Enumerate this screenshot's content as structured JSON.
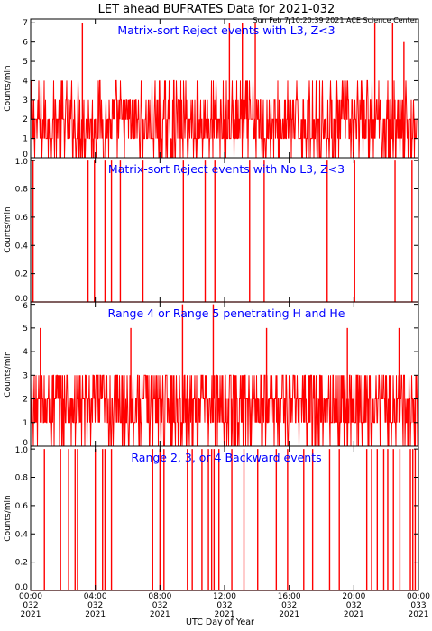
{
  "title": "LET ahead BUFRATES Data for 2021-032",
  "subtitle": "Sun Feb  7 10:20:39 2021 ACE Science Center",
  "xlabel": "UTC Day of Year",
  "colors": {
    "data": "#ff0000",
    "panel_title": "#0000ff",
    "axes": "#000000"
  },
  "chart_data": {
    "type": "bar",
    "x_ticks": [
      {
        "time": "00:00",
        "doy": "032",
        "year": "2021"
      },
      {
        "time": "04:00",
        "doy": "032",
        "year": "2021"
      },
      {
        "time": "08:00",
        "doy": "032",
        "year": "2021"
      },
      {
        "time": "12:00",
        "doy": "032",
        "year": "2021"
      },
      {
        "time": "16:00",
        "doy": "032",
        "year": "2021"
      },
      {
        "time": "20:00",
        "doy": "032",
        "year": "2021"
      },
      {
        "time": "00:00",
        "doy": "033",
        "year": "2021"
      }
    ],
    "x_range_hours": [
      0,
      24
    ],
    "panels": [
      {
        "title": "Matrix-sort Reject events with L3, Z<3",
        "ylabel": "Counts/min",
        "ylim": [
          0,
          7.2
        ],
        "yticks": [
          0,
          1,
          2,
          3,
          4,
          5,
          6,
          7
        ],
        "ytick_labels": [
          "0",
          "1",
          "2",
          "3",
          "4",
          "5",
          "6",
          "7"
        ],
        "kind": "dense",
        "typical_range": [
          0,
          4
        ],
        "peaks": [
          {
            "time_hours": 3.2,
            "value": 7
          },
          {
            "time_hours": 12.3,
            "value": 7
          },
          {
            "time_hours": 13.1,
            "value": 7
          },
          {
            "time_hours": 13.9,
            "value": 7
          },
          {
            "time_hours": 21.3,
            "value": 7
          },
          {
            "time_hours": 22.4,
            "value": 7
          },
          {
            "time_hours": 23.1,
            "value": 6
          }
        ]
      },
      {
        "title": "Matrix-sort Reject events with No L3, Z<3",
        "ylabel": "Counts/min",
        "ylim": [
          0,
          1.02
        ],
        "yticks": [
          0,
          0.2,
          0.4,
          0.6,
          0.8,
          1.0
        ],
        "ytick_labels": [
          "0.0",
          "0.2",
          "0.4",
          "0.6",
          "0.8",
          "1.0"
        ],
        "kind": "sparse",
        "event_value": 1,
        "event_times_hours": [
          0.15,
          3.55,
          3.95,
          4.6,
          5.0,
          5.55,
          6.95,
          9.45,
          10.8,
          11.4,
          13.55,
          14.45,
          18.35,
          20.05,
          22.55,
          23.6
        ]
      },
      {
        "title": "Range 4 or Range 5 penetrating H and He",
        "ylabel": "Counts/min",
        "ylim": [
          0,
          6.1
        ],
        "yticks": [
          0,
          1,
          2,
          3,
          4,
          5,
          6
        ],
        "ytick_labels": [
          "0",
          "1",
          "2",
          "3",
          "4",
          "5",
          "6"
        ],
        "kind": "dense",
        "typical_range": [
          0,
          3
        ],
        "peaks": [
          {
            "time_hours": 0.6,
            "value": 5
          },
          {
            "time_hours": 6.2,
            "value": 5
          },
          {
            "time_hours": 9.4,
            "value": 6
          },
          {
            "time_hours": 11.3,
            "value": 6
          },
          {
            "time_hours": 14.6,
            "value": 5
          },
          {
            "time_hours": 19.6,
            "value": 5
          },
          {
            "time_hours": 22.8,
            "value": 5
          }
        ]
      },
      {
        "title": "Range 2, 3, or 4 Backward events",
        "ylabel": "Counts/min",
        "ylim": [
          0,
          1.02
        ],
        "yticks": [
          0,
          0.2,
          0.4,
          0.6,
          0.8,
          1.0
        ],
        "ytick_labels": [
          "0.0",
          "0.2",
          "0.4",
          "0.6",
          "0.8",
          "1.0"
        ],
        "kind": "sparse",
        "event_value": 1,
        "event_times_hours": [
          0.85,
          1.85,
          2.35,
          2.75,
          2.9,
          4.0,
          4.45,
          4.6,
          5.0,
          7.55,
          8.0,
          8.25,
          9.7,
          10.0,
          10.6,
          11.0,
          11.2,
          11.35,
          11.65,
          12.45,
          13.2,
          14.05,
          15.2,
          15.9,
          16.9,
          17.45,
          18.5,
          19.1,
          20.8,
          21.1,
          21.45,
          21.85,
          22.1,
          22.45,
          22.85,
          23.5,
          23.65,
          23.8
        ]
      }
    ]
  }
}
